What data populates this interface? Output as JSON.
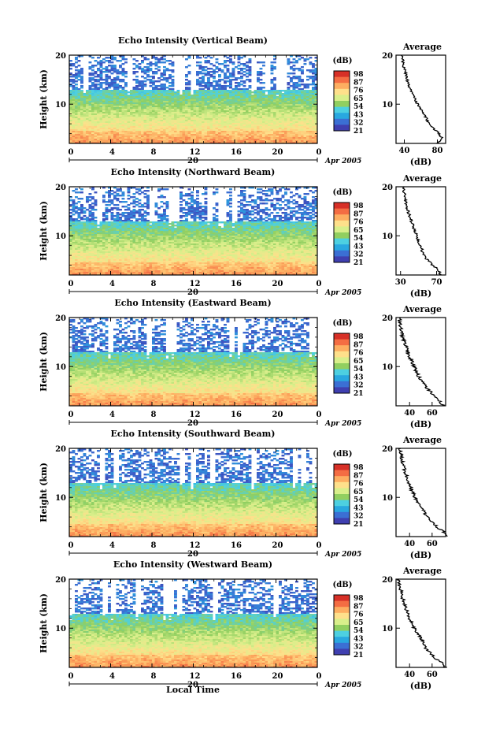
{
  "common": {
    "ylabel": "Height (km)",
    "y_ticks": [
      "20",
      "10"
    ],
    "x_ticks": [
      "0",
      "4",
      "8",
      "12",
      "16",
      "20",
      "0"
    ],
    "date_day": "20",
    "date_label": "Apr 2005",
    "colorbar_unit": "(dB)",
    "avg_title": "Average",
    "avg_xlabel": "(dB)",
    "xlabel_time": "Local Time"
  },
  "chart_data": [
    {
      "type": "heatmap",
      "title": "Echo Intensity (Vertical Beam)",
      "ylabel": "Height (km)",
      "xlim": [
        0,
        24
      ],
      "ylim": [
        2,
        20
      ],
      "colorbar_labels": [
        "98",
        "87",
        "76",
        "65",
        "54",
        "43",
        "32",
        "21"
      ],
      "avg_ticks": [
        "40",
        "80"
      ],
      "avg_xlim": [
        30,
        90
      ],
      "avg_profile": {
        "height": [
          2,
          3,
          4,
          5,
          6,
          8,
          10,
          12,
          14,
          16,
          18,
          20
        ],
        "value": [
          80,
          86,
          82,
          76,
          70,
          64,
          56,
          50,
          45,
          42,
          39,
          37
        ]
      }
    },
    {
      "type": "heatmap",
      "title": "Echo Intensity (Northward Beam)",
      "ylabel": "Height (km)",
      "xlim": [
        0,
        24
      ],
      "ylim": [
        2,
        20
      ],
      "colorbar_labels": [
        "98",
        "87",
        "76",
        "65",
        "54",
        "43",
        "32",
        "21"
      ],
      "avg_ticks": [
        "30",
        "70"
      ],
      "avg_xlim": [
        25,
        80
      ],
      "avg_profile": {
        "height": [
          2,
          3,
          4,
          5,
          6,
          8,
          10,
          12,
          14,
          16,
          18,
          20
        ],
        "value": [
          74,
          72,
          66,
          60,
          56,
          52,
          48,
          44,
          40,
          37,
          35,
          33
        ]
      }
    },
    {
      "type": "heatmap",
      "title": "Echo Intensity (Eastward Beam)",
      "ylabel": "Height (km)",
      "xlim": [
        0,
        24
      ],
      "ylim": [
        2,
        20
      ],
      "colorbar_labels": [
        "98",
        "87",
        "76",
        "65",
        "54",
        "43",
        "32",
        "21"
      ],
      "avg_ticks": [
        "40",
        "60"
      ],
      "avg_xlim": [
        28,
        72
      ],
      "avg_profile": {
        "height": [
          2,
          3,
          4,
          5,
          6,
          8,
          10,
          12,
          14,
          16,
          18,
          20
        ],
        "value": [
          70,
          66,
          62,
          58,
          54,
          48,
          44,
          40,
          37,
          34,
          32,
          31
        ]
      }
    },
    {
      "type": "heatmap",
      "title": "Echo Intensity (Southward Beam)",
      "ylabel": "Height (km)",
      "xlim": [
        0,
        24
      ],
      "ylim": [
        2,
        20
      ],
      "colorbar_labels": [
        "98",
        "87",
        "76",
        "65",
        "54",
        "43",
        "32",
        "21"
      ],
      "avg_ticks": [
        "40",
        "60"
      ],
      "avg_xlim": [
        28,
        72
      ],
      "avg_profile": {
        "height": [
          2,
          3,
          4,
          5,
          6,
          8,
          10,
          12,
          14,
          16,
          18,
          20
        ],
        "value": [
          72,
          70,
          64,
          60,
          56,
          50,
          45,
          41,
          38,
          35,
          33,
          31
        ]
      }
    },
    {
      "type": "heatmap",
      "title": "Echo Intensity (Westward Beam)",
      "ylabel": "Height (km)",
      "xlim": [
        0,
        24
      ],
      "ylim": [
        2,
        20
      ],
      "colorbar_labels": [
        "98",
        "87",
        "76",
        "65",
        "54",
        "43",
        "32",
        "21"
      ],
      "avg_ticks": [
        "40",
        "60"
      ],
      "avg_xlim": [
        28,
        72
      ],
      "avg_profile": {
        "height": [
          2,
          3,
          4,
          5,
          6,
          8,
          10,
          12,
          14,
          16,
          18,
          20
        ],
        "value": [
          72,
          68,
          62,
          58,
          54,
          50,
          44,
          40,
          37,
          34,
          32,
          30
        ]
      }
    }
  ],
  "colors": {
    "colorbar": [
      "#d73027",
      "#f46d43",
      "#fdae61",
      "#fee08b",
      "#d9ef8b",
      "#91cf60",
      "#4dd0e1",
      "#29a8e0",
      "#3b6fd4",
      "#3f3fb0"
    ]
  }
}
